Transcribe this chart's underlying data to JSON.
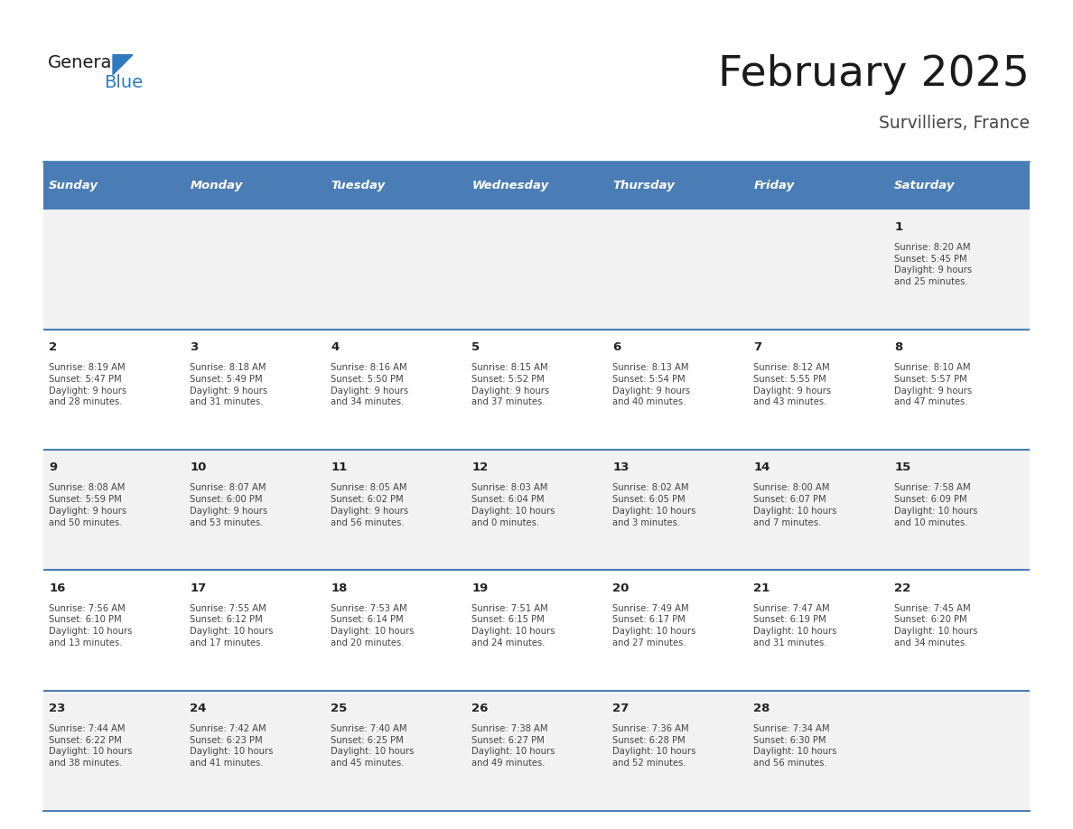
{
  "title": "February 2025",
  "subtitle": "Survilliers, France",
  "days_of_week": [
    "Sunday",
    "Monday",
    "Tuesday",
    "Wednesday",
    "Thursday",
    "Friday",
    "Saturday"
  ],
  "header_bg": "#4a7db5",
  "header_text": "#ffffff",
  "cell_bg_odd": "#f2f2f2",
  "cell_bg_even": "#ffffff",
  "text_color": "#444444",
  "day_number_color": "#222222",
  "border_color": "#4a7db5",
  "separator_color": "#4a7db5",
  "title_color": "#1a1a1a",
  "subtitle_color": "#444444",
  "logo_general_color": "#1a1a1a",
  "logo_blue_color": "#2e7bbf",
  "calendar_data": [
    [
      null,
      null,
      null,
      null,
      null,
      null,
      {
        "day": 1,
        "sunrise": "8:20 AM",
        "sunset": "5:45 PM",
        "daylight": "9 hours\nand 25 minutes."
      }
    ],
    [
      {
        "day": 2,
        "sunrise": "8:19 AM",
        "sunset": "5:47 PM",
        "daylight": "9 hours\nand 28 minutes."
      },
      {
        "day": 3,
        "sunrise": "8:18 AM",
        "sunset": "5:49 PM",
        "daylight": "9 hours\nand 31 minutes."
      },
      {
        "day": 4,
        "sunrise": "8:16 AM",
        "sunset": "5:50 PM",
        "daylight": "9 hours\nand 34 minutes."
      },
      {
        "day": 5,
        "sunrise": "8:15 AM",
        "sunset": "5:52 PM",
        "daylight": "9 hours\nand 37 minutes."
      },
      {
        "day": 6,
        "sunrise": "8:13 AM",
        "sunset": "5:54 PM",
        "daylight": "9 hours\nand 40 minutes."
      },
      {
        "day": 7,
        "sunrise": "8:12 AM",
        "sunset": "5:55 PM",
        "daylight": "9 hours\nand 43 minutes."
      },
      {
        "day": 8,
        "sunrise": "8:10 AM",
        "sunset": "5:57 PM",
        "daylight": "9 hours\nand 47 minutes."
      }
    ],
    [
      {
        "day": 9,
        "sunrise": "8:08 AM",
        "sunset": "5:59 PM",
        "daylight": "9 hours\nand 50 minutes."
      },
      {
        "day": 10,
        "sunrise": "8:07 AM",
        "sunset": "6:00 PM",
        "daylight": "9 hours\nand 53 minutes."
      },
      {
        "day": 11,
        "sunrise": "8:05 AM",
        "sunset": "6:02 PM",
        "daylight": "9 hours\nand 56 minutes."
      },
      {
        "day": 12,
        "sunrise": "8:03 AM",
        "sunset": "6:04 PM",
        "daylight": "10 hours\nand 0 minutes."
      },
      {
        "day": 13,
        "sunrise": "8:02 AM",
        "sunset": "6:05 PM",
        "daylight": "10 hours\nand 3 minutes."
      },
      {
        "day": 14,
        "sunrise": "8:00 AM",
        "sunset": "6:07 PM",
        "daylight": "10 hours\nand 7 minutes."
      },
      {
        "day": 15,
        "sunrise": "7:58 AM",
        "sunset": "6:09 PM",
        "daylight": "10 hours\nand 10 minutes."
      }
    ],
    [
      {
        "day": 16,
        "sunrise": "7:56 AM",
        "sunset": "6:10 PM",
        "daylight": "10 hours\nand 13 minutes."
      },
      {
        "day": 17,
        "sunrise": "7:55 AM",
        "sunset": "6:12 PM",
        "daylight": "10 hours\nand 17 minutes."
      },
      {
        "day": 18,
        "sunrise": "7:53 AM",
        "sunset": "6:14 PM",
        "daylight": "10 hours\nand 20 minutes."
      },
      {
        "day": 19,
        "sunrise": "7:51 AM",
        "sunset": "6:15 PM",
        "daylight": "10 hours\nand 24 minutes."
      },
      {
        "day": 20,
        "sunrise": "7:49 AM",
        "sunset": "6:17 PM",
        "daylight": "10 hours\nand 27 minutes."
      },
      {
        "day": 21,
        "sunrise": "7:47 AM",
        "sunset": "6:19 PM",
        "daylight": "10 hours\nand 31 minutes."
      },
      {
        "day": 22,
        "sunrise": "7:45 AM",
        "sunset": "6:20 PM",
        "daylight": "10 hours\nand 34 minutes."
      }
    ],
    [
      {
        "day": 23,
        "sunrise": "7:44 AM",
        "sunset": "6:22 PM",
        "daylight": "10 hours\nand 38 minutes."
      },
      {
        "day": 24,
        "sunrise": "7:42 AM",
        "sunset": "6:23 PM",
        "daylight": "10 hours\nand 41 minutes."
      },
      {
        "day": 25,
        "sunrise": "7:40 AM",
        "sunset": "6:25 PM",
        "daylight": "10 hours\nand 45 minutes."
      },
      {
        "day": 26,
        "sunrise": "7:38 AM",
        "sunset": "6:27 PM",
        "daylight": "10 hours\nand 49 minutes."
      },
      {
        "day": 27,
        "sunrise": "7:36 AM",
        "sunset": "6:28 PM",
        "daylight": "10 hours\nand 52 minutes."
      },
      {
        "day": 28,
        "sunrise": "7:34 AM",
        "sunset": "6:30 PM",
        "daylight": "10 hours\nand 56 minutes."
      },
      null
    ]
  ],
  "figsize": [
    11.88,
    9.18
  ],
  "dpi": 100
}
